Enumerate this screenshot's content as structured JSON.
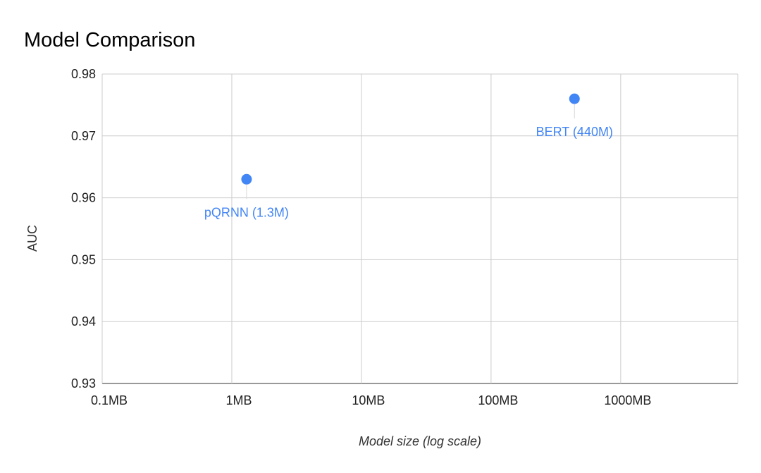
{
  "chart_data": {
    "type": "scatter",
    "title": "Model Comparison",
    "xlabel": "Model size (log scale)",
    "ylabel": "AUC",
    "x_scale": "log",
    "x_unit": "MB",
    "xlim": [
      0.1,
      8000
    ],
    "ylim": [
      0.93,
      0.98
    ],
    "x_ticks": [
      {
        "value": 0.1,
        "label": "0.1MB"
      },
      {
        "value": 1,
        "label": "1MB"
      },
      {
        "value": 10,
        "label": "10MB"
      },
      {
        "value": 100,
        "label": "100MB"
      },
      {
        "value": 1000,
        "label": "1000MB"
      }
    ],
    "y_ticks": [
      {
        "value": 0.93,
        "label": "0.93"
      },
      {
        "value": 0.94,
        "label": "0.94"
      },
      {
        "value": 0.95,
        "label": "0.95"
      },
      {
        "value": 0.96,
        "label": "0.96"
      },
      {
        "value": 0.97,
        "label": "0.97"
      },
      {
        "value": 0.98,
        "label": "0.98"
      }
    ],
    "grid": true,
    "legend": "none",
    "colors": {
      "points": "#4285f4",
      "grid": "#cccccc",
      "leader": "#dddddd"
    },
    "points": [
      {
        "x": 1.3,
        "y": 0.963,
        "label": "pQRNN (1.3M)"
      },
      {
        "x": 440,
        "y": 0.976,
        "label": "BERT (440M)"
      }
    ]
  }
}
